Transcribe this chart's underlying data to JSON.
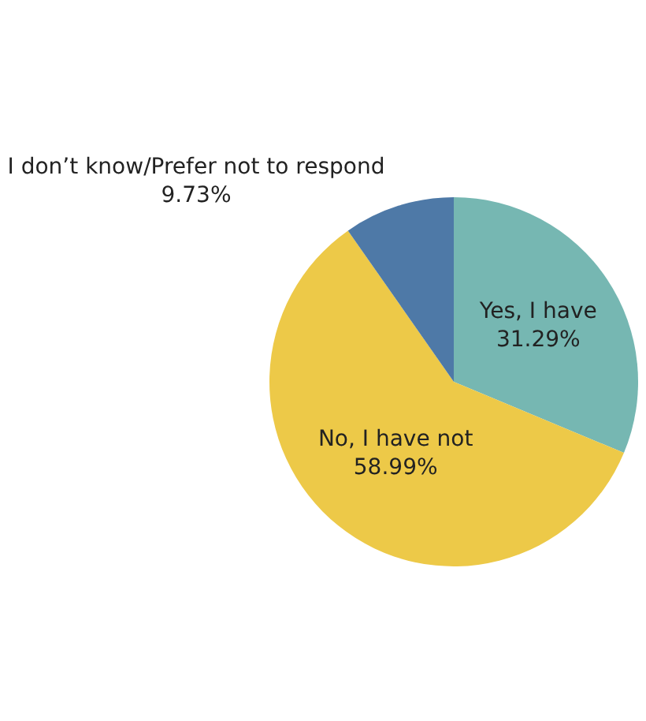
{
  "chart_data": {
    "type": "pie",
    "categories": [
      "Yes, I have",
      "No, I have not",
      "I don’t know/Prefer not to respond"
    ],
    "values": [
      31.29,
      58.99,
      9.73
    ],
    "value_labels": [
      "31.29%",
      "58.99%",
      "9.73%"
    ],
    "colors": [
      "#76b7b2",
      "#edc948",
      "#4e79a7"
    ],
    "legend": false
  }
}
